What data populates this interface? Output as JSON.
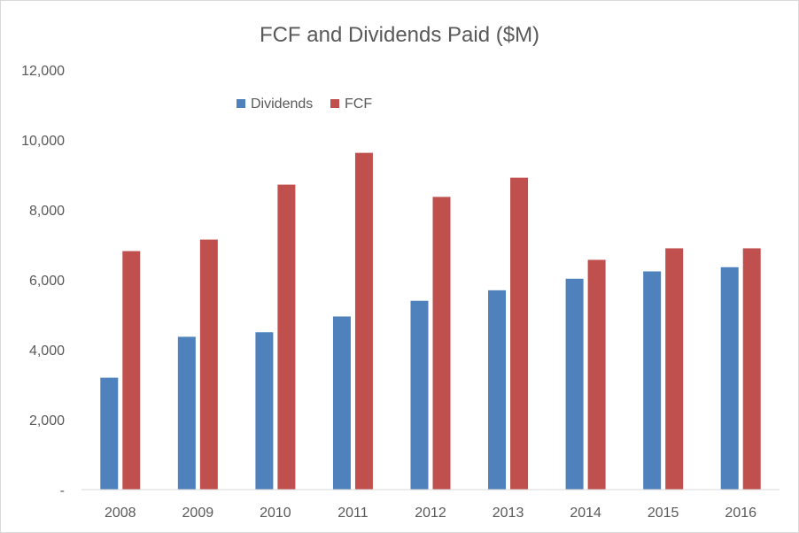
{
  "chart_data": {
    "type": "bar",
    "title": "FCF and Dividends Paid ($M)",
    "xlabel": "",
    "ylabel": "",
    "ylim": [
      0,
      12000
    ],
    "y_ticks": [
      0,
      2000,
      4000,
      6000,
      8000,
      10000,
      12000
    ],
    "y_tick_labels": [
      "-",
      "2,000",
      "4,000",
      "6,000",
      "8,000",
      "10,000",
      "12,000"
    ],
    "grid": false,
    "legend_position": "top-left",
    "categories": [
      "2008",
      "2009",
      "2010",
      "2011",
      "2012",
      "2013",
      "2014",
      "2015",
      "2016"
    ],
    "series": [
      {
        "name": "Dividends",
        "color": "#4f81bd",
        "values": [
          3200,
          4370,
          4500,
          4950,
          5400,
          5700,
          6030,
          6240,
          6360
        ]
      },
      {
        "name": "FCF",
        "color": "#c0504d",
        "values": [
          6820,
          7150,
          8720,
          9630,
          8370,
          8920,
          6570,
          6900,
          6900
        ]
      }
    ]
  }
}
